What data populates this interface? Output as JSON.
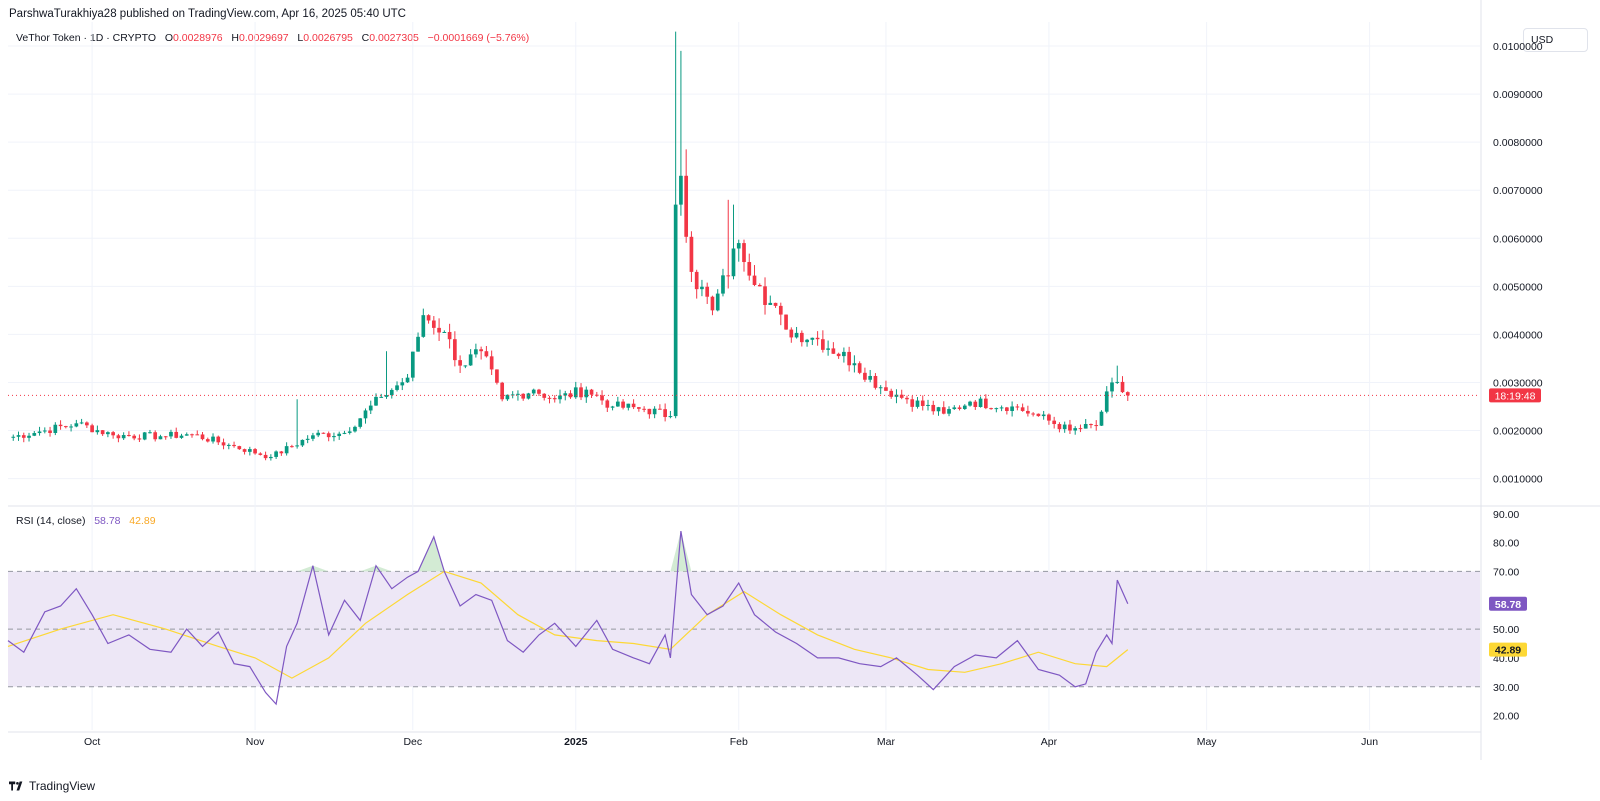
{
  "header": {
    "published_line": "ParshwaTurakhiya28 published on TradingView.com, Apr 16, 2025 05:40 UTC"
  },
  "legend": {
    "symbol": "VeThor Token · 1D · CRYPTO",
    "o_label": "O",
    "o_value": "0.0028976",
    "h_label": "H",
    "h_value": "0.0029697",
    "l_label": "L",
    "l_value": "0.0026795",
    "c_label": "C",
    "c_value": "0.0027305",
    "change": "−0.0001669 (−5.76%)"
  },
  "currency_button": "USD",
  "rsi_legend": {
    "name": "RSI (14, close)",
    "rsi_value": "58.78",
    "ma_value": "42.89"
  },
  "footer": {
    "brand": "TradingView"
  },
  "colors": {
    "up": "#089981",
    "down": "#f23645",
    "rsi_line": "#7e57c2",
    "rsi_ma": "#fdd835",
    "rsi_band": "#ede7f6",
    "grid": "#f0f3fa"
  },
  "chart_data": [
    {
      "type": "candlestick",
      "title": "VeThor Token · 1D · CRYPTO",
      "y_ticks": [
        "0.0100000",
        "0.0090000",
        "0.0080000",
        "0.0070000",
        "0.0060000",
        "0.0050000",
        "0.0040000",
        "0.0030000",
        "0.0020000",
        "0.0010000"
      ],
      "y_tick_values": [
        0.01,
        0.009,
        0.008,
        0.007,
        0.006,
        0.005,
        0.004,
        0.003,
        0.002,
        0.001
      ],
      "ylim": [
        0.00045,
        0.0105
      ],
      "x_ticks": [
        "Oct",
        "Nov",
        "Dec",
        "2025",
        "Feb",
        "Mar",
        "Apr",
        "May",
        "Jun"
      ],
      "x_tick_dates": [
        "2024-10-01",
        "2024-11-01",
        "2024-12-01",
        "2025-01-01",
        "2025-02-01",
        "2025-03-01",
        "2025-04-01",
        "2025-05-01",
        "2025-06-01"
      ],
      "x_range": [
        "2024-09-15",
        "2025-06-22"
      ],
      "last_price": 0.0027305,
      "countdown_label": "18:19:48",
      "anchors": [
        [
          "2024-09-15",
          0.00185
        ],
        [
          "2024-09-22",
          0.002
        ],
        [
          "2024-09-28",
          0.00215
        ],
        [
          "2024-10-05",
          0.0019
        ],
        [
          "2024-10-14",
          0.00188
        ],
        [
          "2024-10-20",
          0.00192
        ],
        [
          "2024-10-27",
          0.0017
        ],
        [
          "2024-11-04",
          0.00145
        ],
        [
          "2024-11-12",
          0.0019
        ],
        [
          "2024-11-18",
          0.00195
        ],
        [
          "2024-11-25",
          0.0027
        ],
        [
          "2024-11-30",
          0.0031
        ],
        [
          "2024-12-03",
          0.0044
        ],
        [
          "2024-12-07",
          0.00405
        ],
        [
          "2024-12-10",
          0.00335
        ],
        [
          "2024-12-14",
          0.00365
        ],
        [
          "2024-12-18",
          0.00265
        ],
        [
          "2024-12-24",
          0.00285
        ],
        [
          "2024-12-28",
          0.00265
        ],
        [
          "2025-01-03",
          0.00285
        ],
        [
          "2025-01-08",
          0.0025
        ],
        [
          "2025-01-14",
          0.00245
        ],
        [
          "2025-01-19",
          0.0023
        ],
        [
          "2025-01-20",
          0.0067
        ],
        [
          "2025-01-21",
          0.0073
        ],
        [
          "2025-01-23",
          0.0053
        ],
        [
          "2025-01-27",
          0.0045
        ],
        [
          "2025-02-01",
          0.0059
        ],
        [
          "2025-02-05",
          0.005
        ],
        [
          "2025-02-10",
          0.0041
        ],
        [
          "2025-02-16",
          0.0039
        ],
        [
          "2025-02-23",
          0.0034
        ],
        [
          "2025-02-28",
          0.0029
        ],
        [
          "2025-03-05",
          0.00265
        ],
        [
          "2025-03-12",
          0.00235
        ],
        [
          "2025-03-17",
          0.0026
        ],
        [
          "2025-03-25",
          0.0025
        ],
        [
          "2025-03-30",
          0.0023
        ],
        [
          "2025-04-05",
          0.002
        ],
        [
          "2025-04-10",
          0.0021
        ],
        [
          "2025-04-13",
          0.003
        ],
        [
          "2025-04-16",
          0.00273
        ]
      ],
      "spikes": [
        [
          "2024-11-09",
          0.00265
        ],
        [
          "2024-11-26",
          0.00365
        ],
        [
          "2025-01-20",
          0.0103
        ],
        [
          "2025-01-21",
          0.0099
        ],
        [
          "2025-01-22",
          0.00785
        ],
        [
          "2025-01-30",
          0.0068
        ],
        [
          "2025-01-31",
          0.0067
        ],
        [
          "2025-04-14",
          0.00335
        ]
      ]
    },
    {
      "type": "line",
      "title": "RSI (14, close)",
      "y_ticks": [
        "90.00",
        "80.00",
        "70.00",
        "60.00",
        "50.00",
        "40.00",
        "30.00",
        "20.00"
      ],
      "y_tick_values": [
        90,
        80,
        70,
        60,
        50,
        40,
        30,
        20
      ],
      "ylim": [
        15,
        92
      ],
      "band": [
        30,
        70
      ],
      "mid_line": 50,
      "series": [
        {
          "name": "RSI",
          "current_value": 58.78,
          "points": [
            [
              "2024-09-15",
              46
            ],
            [
              "2024-09-18",
              42
            ],
            [
              "2024-09-22",
              56
            ],
            [
              "2024-09-25",
              58
            ],
            [
              "2024-09-28",
              64
            ],
            [
              "2024-10-01",
              55
            ],
            [
              "2024-10-04",
              45
            ],
            [
              "2024-10-08",
              48
            ],
            [
              "2024-10-12",
              43
            ],
            [
              "2024-10-16",
              42
            ],
            [
              "2024-10-19",
              50
            ],
            [
              "2024-10-22",
              44
            ],
            [
              "2024-10-25",
              49
            ],
            [
              "2024-10-28",
              38
            ],
            [
              "2024-10-31",
              37
            ],
            [
              "2024-11-03",
              28
            ],
            [
              "2024-11-05",
              24
            ],
            [
              "2024-11-07",
              44
            ],
            [
              "2024-11-09",
              52
            ],
            [
              "2024-11-12",
              72
            ],
            [
              "2024-11-15",
              48
            ],
            [
              "2024-11-18",
              60
            ],
            [
              "2024-11-21",
              53
            ],
            [
              "2024-11-24",
              72
            ],
            [
              "2024-11-27",
              64
            ],
            [
              "2024-11-30",
              68
            ],
            [
              "2024-12-02",
              70
            ],
            [
              "2024-12-05",
              82
            ],
            [
              "2024-12-07",
              70
            ],
            [
              "2024-12-10",
              58
            ],
            [
              "2024-12-13",
              62
            ],
            [
              "2024-12-16",
              60
            ],
            [
              "2024-12-19",
              46
            ],
            [
              "2024-12-22",
              42
            ],
            [
              "2024-12-25",
              48
            ],
            [
              "2024-12-28",
              52
            ],
            [
              "2025-01-01",
              44
            ],
            [
              "2025-01-05",
              53
            ],
            [
              "2025-01-08",
              43
            ],
            [
              "2025-01-12",
              40
            ],
            [
              "2025-01-15",
              38
            ],
            [
              "2025-01-18",
              48
            ],
            [
              "2025-01-19",
              40
            ],
            [
              "2025-01-21",
              84
            ],
            [
              "2025-01-23",
              62
            ],
            [
              "2025-01-26",
              55
            ],
            [
              "2025-01-29",
              58
            ],
            [
              "2025-02-01",
              66
            ],
            [
              "2025-02-04",
              55
            ],
            [
              "2025-02-08",
              49
            ],
            [
              "2025-02-12",
              45
            ],
            [
              "2025-02-16",
              40
            ],
            [
              "2025-02-20",
              40
            ],
            [
              "2025-02-24",
              38
            ],
            [
              "2025-02-28",
              37
            ],
            [
              "2025-03-03",
              40
            ],
            [
              "2025-03-07",
              34
            ],
            [
              "2025-03-10",
              29
            ],
            [
              "2025-03-14",
              37
            ],
            [
              "2025-03-18",
              41
            ],
            [
              "2025-03-22",
              40
            ],
            [
              "2025-03-26",
              46
            ],
            [
              "2025-03-30",
              36
            ],
            [
              "2025-04-03",
              34
            ],
            [
              "2025-04-06",
              30
            ],
            [
              "2025-04-08",
              31
            ],
            [
              "2025-04-10",
              42
            ],
            [
              "2025-04-12",
              48
            ],
            [
              "2025-04-13",
              45
            ],
            [
              "2025-04-14",
              67
            ],
            [
              "2025-04-16",
              58.78
            ]
          ]
        },
        {
          "name": "RSI-based MA",
          "current_value": 42.89,
          "points": [
            [
              "2024-09-15",
              44
            ],
            [
              "2024-09-25",
              50
            ],
            [
              "2024-10-05",
              55
            ],
            [
              "2024-10-15",
              50
            ],
            [
              "2024-10-25",
              44
            ],
            [
              "2024-11-01",
              40
            ],
            [
              "2024-11-08",
              33
            ],
            [
              "2024-11-15",
              40
            ],
            [
              "2024-11-22",
              52
            ],
            [
              "2024-11-30",
              62
            ],
            [
              "2024-12-07",
              70
            ],
            [
              "2024-12-14",
              66
            ],
            [
              "2024-12-21",
              55
            ],
            [
              "2024-12-28",
              48
            ],
            [
              "2025-01-05",
              46
            ],
            [
              "2025-01-12",
              45
            ],
            [
              "2025-01-19",
              43
            ],
            [
              "2025-01-26",
              55
            ],
            [
              "2025-02-02",
              63
            ],
            [
              "2025-02-09",
              55
            ],
            [
              "2025-02-16",
              48
            ],
            [
              "2025-02-23",
              43
            ],
            [
              "2025-03-02",
              40
            ],
            [
              "2025-03-09",
              36
            ],
            [
              "2025-03-16",
              35
            ],
            [
              "2025-03-23",
              38
            ],
            [
              "2025-03-30",
              42
            ],
            [
              "2025-04-06",
              38
            ],
            [
              "2025-04-12",
              37
            ],
            [
              "2025-04-16",
              42.89
            ]
          ]
        }
      ]
    }
  ]
}
